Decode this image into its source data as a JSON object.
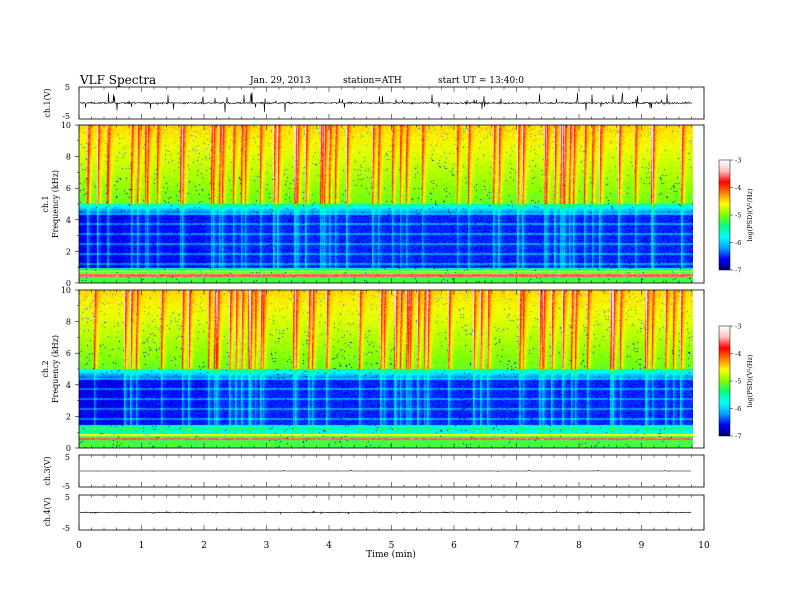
{
  "header": {
    "title": "VLF Spectra",
    "date": "Jan. 29, 2013",
    "station": "station=ATH",
    "start": "start  UT =   13:40:0"
  },
  "chart_data": [
    {
      "type": "line",
      "panel": "ch1-waveform",
      "ylabel": "ch.1(V)",
      "ylim": [
        -5,
        5
      ],
      "yticks": [
        "5",
        "-5"
      ],
      "xlim": [
        0,
        10
      ],
      "signal": "dense noisy waveform centered near 0 V with frequent spikes up to about ±2 V, ending near 9.8 min"
    },
    {
      "type": "heatmap",
      "panel": "ch1-spectrogram",
      "ylabel": "ch.1 Frequency (kHz)",
      "ylim": [
        0,
        10
      ],
      "yticks": [
        "0",
        "2",
        "4",
        "6",
        "8",
        "10"
      ],
      "xlim": [
        0,
        10
      ],
      "data_end_min": 9.8,
      "colorbar": {
        "label": "log(PSD)(V²/Hz)",
        "range": [
          -7,
          -3
        ],
        "ticks": [
          "-3",
          "-4",
          "-5",
          "-6",
          "-7"
        ]
      },
      "features": "weak (-6 to -7) band between about 1 and 5 kHz; strong (-3 to -4) impulsive broadband emissions from 5 to 10 kHz; persistent strong line near 0.5 kHz; change in background level near 0.7 min and 2.0 min"
    },
    {
      "type": "heatmap",
      "panel": "ch2-spectrogram",
      "ylabel": "ch.2 Frequency (kHz)",
      "ylim": [
        0,
        10
      ],
      "yticks": [
        "0",
        "2",
        "4",
        "6",
        "8",
        "10"
      ],
      "xlim": [
        0,
        10
      ],
      "data_end_min": 9.8,
      "colorbar": {
        "label": "log(PSD)(V²/Hz)",
        "range": [
          -7,
          -3
        ],
        "ticks": [
          "-3",
          "-4",
          "-5",
          "-6",
          "-7"
        ]
      },
      "features": "similar to ch.1 with weak band between about 1.5 and 5 kHz and strong line near 0.6 kHz"
    },
    {
      "type": "line",
      "panel": "ch3-waveform",
      "ylabel": "ch.3(V)",
      "ylim": [
        -5,
        5
      ],
      "yticks": [
        "5",
        "-5"
      ],
      "xlim": [
        0,
        10
      ],
      "signal": "nearly flat trace close to 0 V"
    },
    {
      "type": "line",
      "panel": "ch4-waveform",
      "ylabel": "ch.4(V)",
      "ylim": [
        -5,
        5
      ],
      "yticks": [
        "5",
        "-5"
      ],
      "xlim": [
        0,
        10
      ],
      "signal": "thick dense band near 0 V"
    }
  ],
  "xaxis": {
    "label": "Time (min)",
    "ticks": [
      "0",
      "1",
      "2",
      "3",
      "4",
      "5",
      "6",
      "7",
      "8",
      "9",
      "10"
    ]
  },
  "colors": {
    "colormap": [
      "#000066",
      "#0000ff",
      "#00a0ff",
      "#00ffff",
      "#00ff80",
      "#80ff00",
      "#ffff00",
      "#ff8000",
      "#ff0000",
      "#ffc0c0",
      "#ffffff"
    ]
  }
}
